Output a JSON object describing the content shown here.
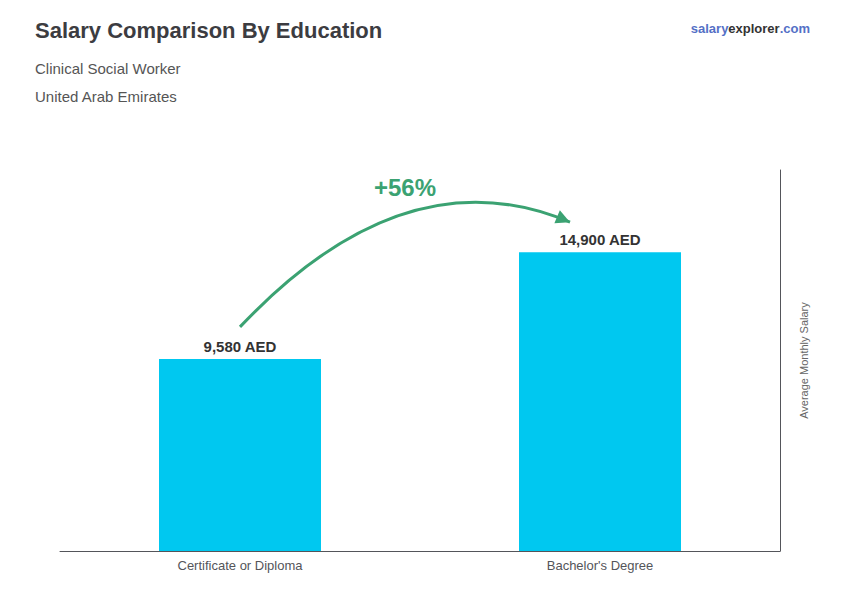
{
  "chart_data": {
    "type": "bar",
    "title": "Salary Comparison By Education",
    "subtitle": [
      "Clinical Social Worker",
      "United Arab Emirates"
    ],
    "ylabel": "Average Monthly Salary",
    "annotations": [
      "+56%",
      "salary",
      "explorer",
      ".com"
    ],
    "categories": [
      "Certificate or Diploma",
      "Bachelor's Degree"
    ],
    "values": [
      9580,
      14900
    ],
    "value_labels": [
      "9,580 AED",
      "14,900 AED"
    ],
    "data_labels": true,
    "color": "#00C8F0",
    "ylim": [
      0,
      19000
    ],
    "tick_labels": "x",
    "grid": false
  }
}
